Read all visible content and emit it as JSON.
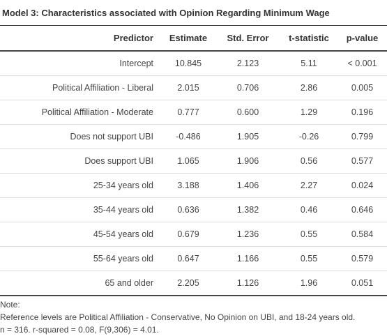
{
  "title": "Model 3: Characteristics associated with Opinion Regarding Minimum Wage",
  "columns": {
    "predictor": "Predictor",
    "estimate": "Estimate",
    "std_error": "Std. Error",
    "t_statistic": "t-statistic",
    "p_value": "p-value"
  },
  "rows": [
    {
      "predictor": "Intercept",
      "estimate": "10.845",
      "std_error": "2.123",
      "t_statistic": "5.11",
      "p_value": "< 0.001"
    },
    {
      "predictor": "Political Affiliation - Liberal",
      "estimate": "2.015",
      "std_error": "0.706",
      "t_statistic": "2.86",
      "p_value": "0.005"
    },
    {
      "predictor": "Political Affiliation - Moderate",
      "estimate": "0.777",
      "std_error": "0.600",
      "t_statistic": "1.29",
      "p_value": "0.196"
    },
    {
      "predictor": "Does not support UBI",
      "estimate": "-0.486",
      "std_error": "1.905",
      "t_statistic": "-0.26",
      "p_value": "0.799"
    },
    {
      "predictor": "Does support UBI",
      "estimate": "1.065",
      "std_error": "1.906",
      "t_statistic": "0.56",
      "p_value": "0.577"
    },
    {
      "predictor": "25-34 years old",
      "estimate": "3.188",
      "std_error": "1.406",
      "t_statistic": "2.27",
      "p_value": "0.024"
    },
    {
      "predictor": "35-44 years old",
      "estimate": "0.636",
      "std_error": "1.382",
      "t_statistic": "0.46",
      "p_value": "0.646"
    },
    {
      "predictor": "45-54 years old",
      "estimate": "0.679",
      "std_error": "1.236",
      "t_statistic": "0.55",
      "p_value": "0.584"
    },
    {
      "predictor": "55-64 years old",
      "estimate": "0.647",
      "std_error": "1.166",
      "t_statistic": "0.55",
      "p_value": "0.579"
    },
    {
      "predictor": "65 and older",
      "estimate": "2.205",
      "std_error": "1.126",
      "t_statistic": "1.96",
      "p_value": "0.051"
    }
  ],
  "notes": {
    "heading": "Note:",
    "reference": "Reference levels are Political Affiliation - Conservative, No Opinion on UBI, and 18-24 years old.",
    "stats": "n = 316. r-squared = 0.08, F(9,306) = 4.01."
  }
}
